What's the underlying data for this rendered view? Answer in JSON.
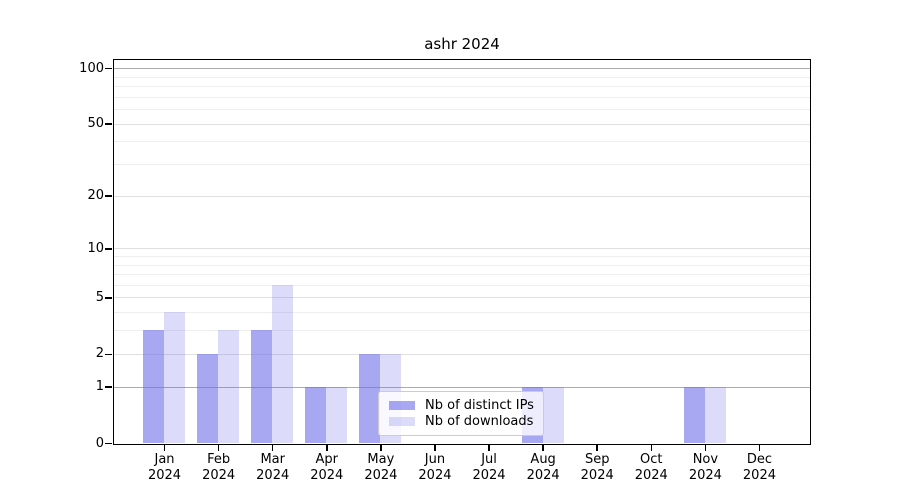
{
  "title": "ashr 2024",
  "legend": {
    "items": [
      {
        "label": "Nb of distinct IPs"
      },
      {
        "label": "Nb of downloads"
      }
    ]
  },
  "chart_data": {
    "type": "bar",
    "title": "ashr 2024",
    "categories": [
      "Jan 2024",
      "Feb 2024",
      "Mar 2024",
      "Apr 2024",
      "May 2024",
      "Jun 2024",
      "Jul 2024",
      "Aug 2024",
      "Sep 2024",
      "Oct 2024",
      "Nov 2024",
      "Dec 2024"
    ],
    "x_tick_month": [
      "Jan",
      "Feb",
      "Mar",
      "Apr",
      "May",
      "Jun",
      "Jul",
      "Aug",
      "Sep",
      "Oct",
      "Nov",
      "Dec"
    ],
    "x_tick_year": "2024",
    "series": [
      {
        "name": "Nb of distinct IPs",
        "color": "rgba(108,108,233,0.6)",
        "values": [
          3,
          2,
          3,
          1,
          2,
          0,
          0,
          1,
          0,
          0,
          1,
          0
        ]
      },
      {
        "name": "Nb of downloads",
        "color": "rgba(108,108,233,0.24)",
        "values": [
          4,
          3,
          6,
          1,
          2,
          0,
          0,
          1,
          0,
          0,
          1,
          0
        ]
      }
    ],
    "y_axis": {
      "scale": "log10(1+y)",
      "tick_values": [
        0,
        1,
        2,
        5,
        10,
        20,
        50,
        100
      ],
      "tick_labels": [
        "0",
        "1",
        "2",
        "5",
        "10",
        "20",
        "50",
        "100"
      ],
      "minor_tick_values": [
        3,
        4,
        6,
        7,
        8,
        9,
        30,
        40,
        60,
        70,
        80,
        90
      ],
      "emphasized_gridlines": [
        1,
        100
      ],
      "ymin": 0,
      "ymax": 114
    },
    "grid": true,
    "legend_position": "lower center"
  },
  "colors": {
    "bar_base": "#6c6ce9",
    "distinct_ips_rendered": "#a7a7f2",
    "downloads_rendered": "#dbdbfa",
    "grid_emphasized": "#ababab",
    "grid_major": "#e0e0e0",
    "grid_minor": "#eeeeee",
    "axis": "#000000",
    "legend_border": "#cccccc"
  }
}
